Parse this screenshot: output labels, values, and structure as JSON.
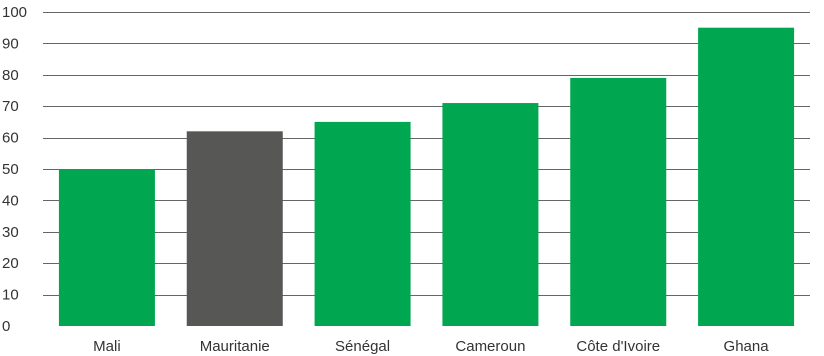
{
  "chart_data": {
    "type": "bar",
    "title": "",
    "xlabel": "",
    "ylabel": "",
    "categories": [
      "Mali",
      "Mauritanie",
      "Sénégal",
      "Cameroun",
      "Côte d'Ivoire",
      "Ghana"
    ],
    "values": [
      50,
      62,
      65,
      71,
      79,
      95
    ],
    "bar_colors": [
      "#00a650",
      "#575756",
      "#00a650",
      "#00a650",
      "#00a650",
      "#00a650"
    ],
    "ylim": [
      0,
      100
    ],
    "yticks": [
      0,
      10,
      20,
      30,
      40,
      50,
      60,
      70,
      80,
      90,
      100
    ],
    "grid": true,
    "legend": "none"
  },
  "colors": {
    "accent_green": "#00a650",
    "highlight_gray": "#575756",
    "gridline": "#666666",
    "text": "#333333"
  }
}
